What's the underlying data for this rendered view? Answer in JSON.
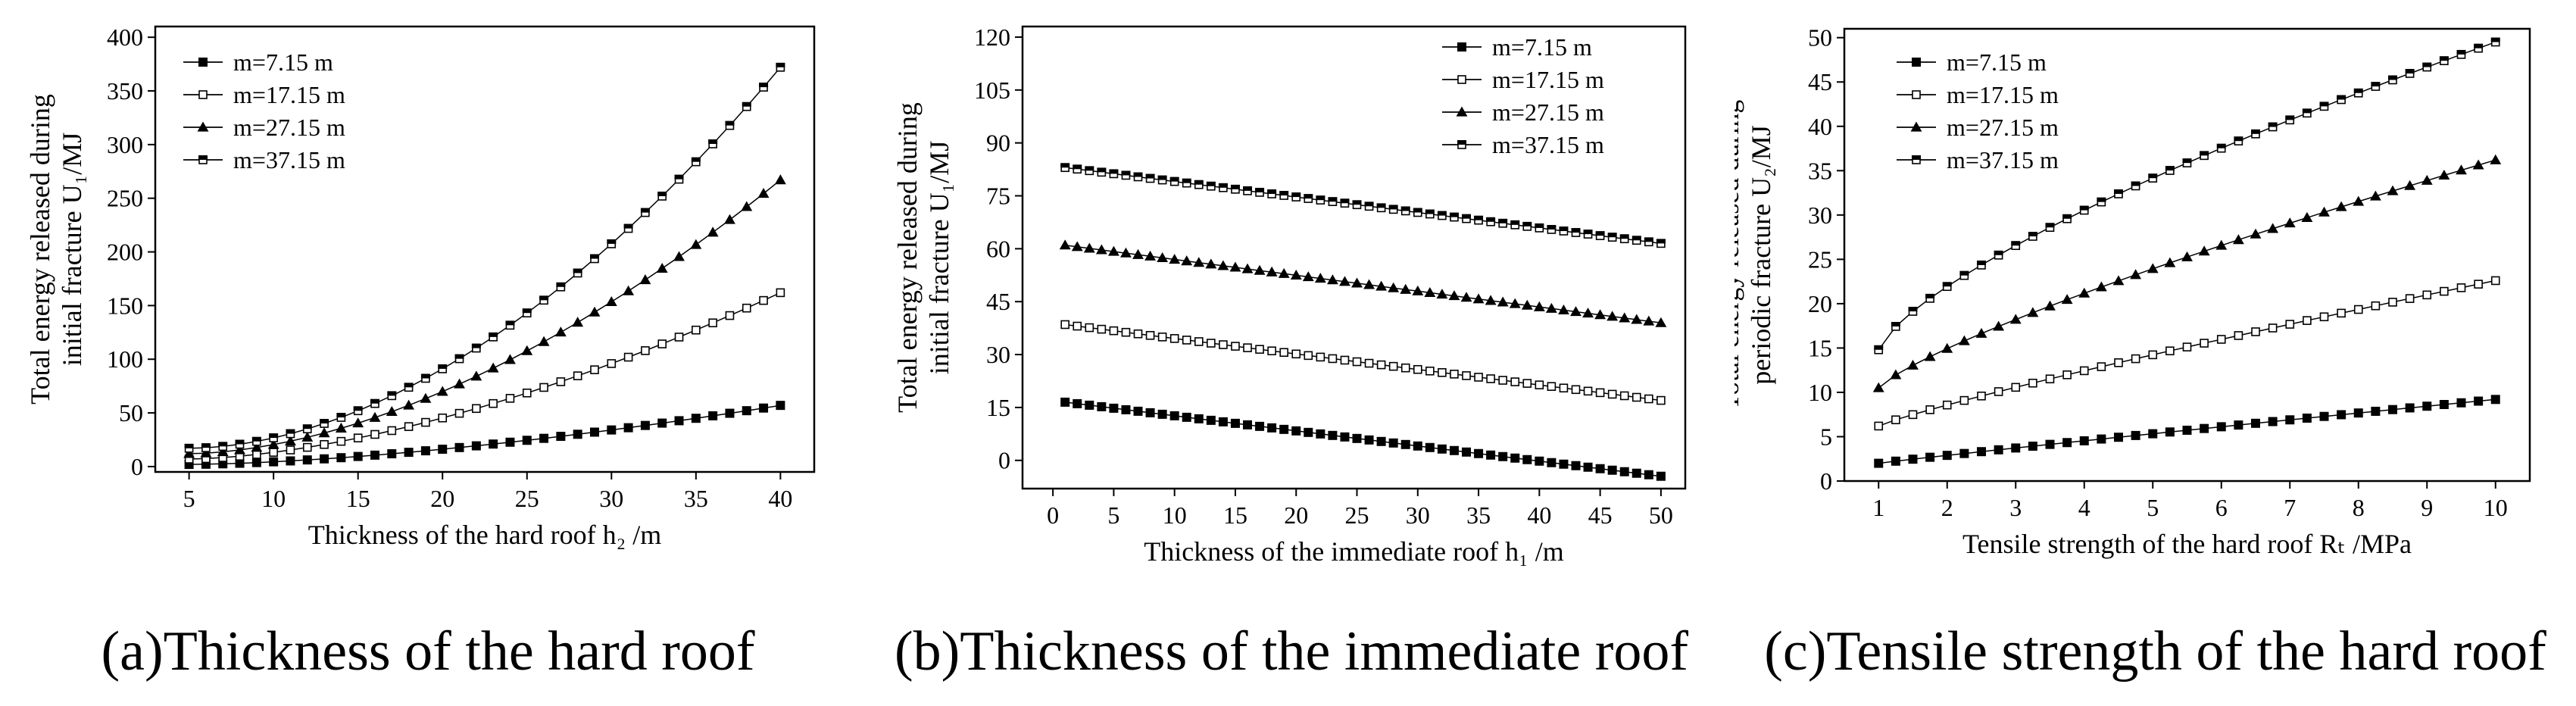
{
  "figure": {
    "charts": [
      {
        "type": "line",
        "title": "",
        "caption": "(a)Thickness of the hard roof",
        "xlabel": "Thickness of the hard roof h₂ /m",
        "ylabel_line1": "Total energy released during",
        "ylabel_line2": "initial fracture U₁/MJ",
        "xlim": [
          3,
          42
        ],
        "ylim": [
          -5,
          410
        ],
        "xticks": [
          5,
          10,
          15,
          20,
          25,
          30,
          35,
          40
        ],
        "yticks": [
          0,
          50,
          100,
          150,
          200,
          250,
          300,
          350,
          400
        ],
        "legend_position": "top-left",
        "x_start": 5,
        "x_end": 40,
        "x_step": 1,
        "series": [
          {
            "name": "m=7.15 m",
            "marker": "filled-square",
            "curve": "power",
            "y_start": 2,
            "y_end": 57,
            "exponent": 1.6
          },
          {
            "name": "m=17.15 m",
            "marker": "open-square",
            "curve": "power",
            "y_start": 7,
            "y_end": 162,
            "exponent": 1.65
          },
          {
            "name": "m=27.15 m",
            "marker": "filled-triangle",
            "curve": "power",
            "y_start": 12,
            "y_end": 267,
            "exponent": 1.75
          },
          {
            "name": "m=37.15 m",
            "marker": "half-square",
            "curve": "power",
            "y_start": 17,
            "y_end": 372,
            "exponent": 1.85
          }
        ]
      },
      {
        "type": "line",
        "title": "",
        "caption": "(b)Thickness of the immediate roof",
        "xlabel": "Thickness of the immediate roof h₁ /m",
        "ylabel_line1": "Total energy released during",
        "ylabel_line2": "initial fracture U₁/MJ",
        "xlim": [
          -2.5,
          52
        ],
        "ylim": [
          -8,
          123
        ],
        "xticks": [
          0,
          5,
          10,
          15,
          20,
          25,
          30,
          35,
          40,
          45,
          50
        ],
        "yticks": [
          0,
          15,
          30,
          45,
          60,
          75,
          90,
          105,
          120
        ],
        "legend_position": "top-right",
        "x_start": 1,
        "x_end": 50,
        "x_step": 1,
        "series": [
          {
            "name": "m=7.15 m",
            "marker": "filled-square",
            "curve": "power",
            "y_start": 16.5,
            "y_end": -4.5,
            "exponent": 1
          },
          {
            "name": "m=17.15 m",
            "marker": "open-square",
            "curve": "power",
            "y_start": 38.5,
            "y_end": 17,
            "exponent": 1
          },
          {
            "name": "m=27.15 m",
            "marker": "filled-triangle",
            "curve": "power",
            "y_start": 61,
            "y_end": 39,
            "exponent": 1
          },
          {
            "name": "m=37.15 m",
            "marker": "half-square",
            "curve": "power",
            "y_start": 83,
            "y_end": 61.5,
            "exponent": 1
          }
        ]
      },
      {
        "type": "line",
        "title": "",
        "caption": "(c)Tensile strength of the hard roof",
        "xlabel": "Tensile strength of the hard roof Rₜ /MPa",
        "ylabel_line1": "Total energy released during",
        "ylabel_line2": "periodic fracture U₂/MJ",
        "xlim": [
          0.5,
          10.5
        ],
        "ylim": [
          0,
          51
        ],
        "xticks": [
          1,
          2,
          3,
          4,
          5,
          6,
          7,
          8,
          9,
          10
        ],
        "yticks": [
          0,
          5,
          10,
          15,
          20,
          25,
          30,
          35,
          40,
          45,
          50
        ],
        "legend_position": "top-left",
        "x_start": 1,
        "x_end": 10,
        "x_step": 0.25,
        "series": [
          {
            "name": "m=7.15 m",
            "marker": "filled-square",
            "curve": "power",
            "y_start": 2,
            "y_end": 9.2,
            "exponent": 0.95
          },
          {
            "name": "m=17.15 m",
            "marker": "open-square",
            "curve": "power",
            "y_start": 6.2,
            "y_end": 22.6,
            "exponent": 0.88
          },
          {
            "name": "m=27.15 m",
            "marker": "filled-triangle",
            "curve": "power",
            "y_start": 10.5,
            "y_end": 36.2,
            "exponent": 0.8
          },
          {
            "name": "m=37.15 m",
            "marker": "half-square",
            "curve": "power",
            "y_start": 14.8,
            "y_end": 49.5,
            "exponent": 0.72
          }
        ]
      }
    ]
  }
}
